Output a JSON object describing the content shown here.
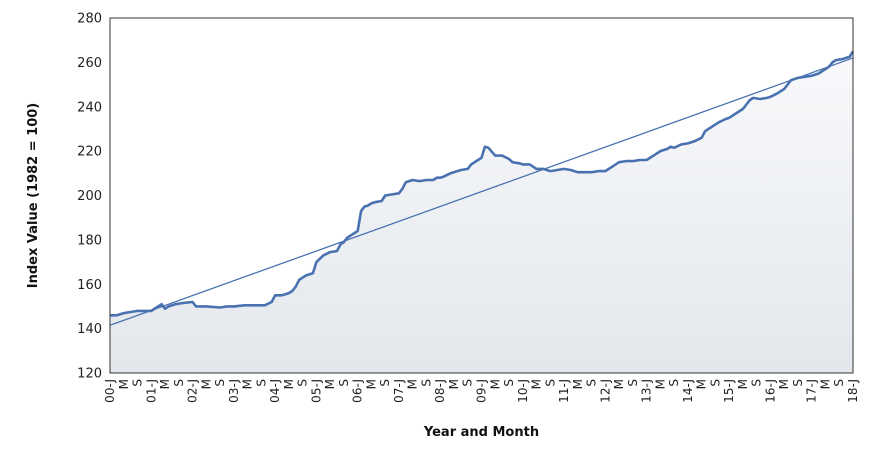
{
  "chart_data": {
    "type": "line",
    "xlabel": "Year and Month",
    "ylabel": "Index Value (1982 = 100)",
    "ylim": [
      120,
      280
    ],
    "yticks": [
      120,
      140,
      160,
      180,
      200,
      220,
      240,
      260,
      280
    ],
    "grid": false,
    "legend": "none",
    "x_tick_labels": [
      "00-J",
      "M",
      "S",
      "01-J",
      "M",
      "S",
      "02-J",
      "M",
      "S",
      "03-J",
      "M",
      "S",
      "04-J",
      "M",
      "S",
      "05-J",
      "M",
      "S",
      "06-J",
      "M",
      "S",
      "07-J",
      "M",
      "S",
      "08-J",
      "M",
      "S",
      "09-J",
      "M",
      "S",
      "10-J",
      "M",
      "S",
      "11-J",
      "M",
      "S",
      "12-J",
      "M",
      "S",
      "13-J",
      "M",
      "S",
      "14-J",
      "M",
      "S",
      "15-J",
      "M",
      "S",
      "16-J",
      "M",
      "S",
      "17-J",
      "M",
      "S",
      "18-J"
    ],
    "x_start": "2000-01",
    "x_end": "2018-01",
    "series": [
      {
        "role": "index",
        "color": "#4a72b0",
        "points": [
          [
            "2000-01",
            146
          ],
          [
            "2000-03",
            146
          ],
          [
            "2000-05",
            147
          ],
          [
            "2000-07",
            147.5
          ],
          [
            "2000-09",
            148
          ],
          [
            "2000-11",
            148
          ],
          [
            "2001-01",
            148
          ],
          [
            "2001-03",
            150
          ],
          [
            "2001-04",
            151
          ],
          [
            "2001-05",
            149
          ],
          [
            "2001-06",
            150
          ],
          [
            "2001-08",
            151
          ],
          [
            "2001-10",
            151.5
          ],
          [
            "2002-01",
            152
          ],
          [
            "2002-02",
            150
          ],
          [
            "2002-05",
            150
          ],
          [
            "2002-09",
            149.5
          ],
          [
            "2002-11",
            150
          ],
          [
            "2003-01",
            150
          ],
          [
            "2003-04",
            150.5
          ],
          [
            "2003-07",
            150.5
          ],
          [
            "2003-10",
            150.5
          ],
          [
            "2003-12",
            152
          ],
          [
            "2004-01",
            155
          ],
          [
            "2004-03",
            155
          ],
          [
            "2004-05",
            156
          ],
          [
            "2004-06",
            157
          ],
          [
            "2004-07",
            159
          ],
          [
            "2004-08",
            162
          ],
          [
            "2004-10",
            164
          ],
          [
            "2004-12",
            165
          ],
          [
            "2005-01",
            170
          ],
          [
            "2005-03",
            173
          ],
          [
            "2005-05",
            174.5
          ],
          [
            "2005-07",
            175
          ],
          [
            "2005-08",
            178
          ],
          [
            "2005-09",
            179
          ],
          [
            "2005-10",
            181
          ],
          [
            "2005-12",
            183
          ],
          [
            "2006-01",
            184
          ],
          [
            "2006-02",
            193
          ],
          [
            "2006-03",
            195
          ],
          [
            "2006-04",
            195.5
          ],
          [
            "2006-05",
            196.5
          ],
          [
            "2006-06",
            197
          ],
          [
            "2006-08",
            197.5
          ],
          [
            "2006-09",
            200
          ],
          [
            "2006-11",
            200.5
          ],
          [
            "2007-01",
            201
          ],
          [
            "2007-02",
            203
          ],
          [
            "2007-03",
            206
          ],
          [
            "2007-05",
            207
          ],
          [
            "2007-07",
            206.5
          ],
          [
            "2007-09",
            207
          ],
          [
            "2007-11",
            207
          ],
          [
            "2007-12",
            208
          ],
          [
            "2008-01",
            208
          ],
          [
            "2008-02",
            208.5
          ],
          [
            "2008-04",
            210
          ],
          [
            "2008-06",
            211
          ],
          [
            "2008-07",
            211.5
          ],
          [
            "2008-09",
            212
          ],
          [
            "2008-10",
            214
          ],
          [
            "2008-12",
            216
          ],
          [
            "2009-01",
            217
          ],
          [
            "2009-02",
            222
          ],
          [
            "2009-03",
            221.5
          ],
          [
            "2009-05",
            218
          ],
          [
            "2009-07",
            218
          ],
          [
            "2009-09",
            216.5
          ],
          [
            "2009-10",
            215
          ],
          [
            "2009-12",
            214.5
          ],
          [
            "2010-01",
            214
          ],
          [
            "2010-03",
            214
          ],
          [
            "2010-05",
            212
          ],
          [
            "2010-07",
            212
          ],
          [
            "2010-09",
            211
          ],
          [
            "2010-11",
            211.5
          ],
          [
            "2011-01",
            212
          ],
          [
            "2011-03",
            211.5
          ],
          [
            "2011-05",
            210.5
          ],
          [
            "2011-07",
            210.5
          ],
          [
            "2011-09",
            210.5
          ],
          [
            "2011-11",
            211
          ],
          [
            "2012-01",
            211
          ],
          [
            "2012-03",
            213
          ],
          [
            "2012-05",
            215
          ],
          [
            "2012-07",
            215.5
          ],
          [
            "2012-09",
            215.5
          ],
          [
            "2012-11",
            216
          ],
          [
            "2013-01",
            216
          ],
          [
            "2013-03",
            218
          ],
          [
            "2013-05",
            220
          ],
          [
            "2013-07",
            221
          ],
          [
            "2013-08",
            222
          ],
          [
            "2013-09",
            221.5
          ],
          [
            "2013-11",
            223
          ],
          [
            "2014-01",
            223.5
          ],
          [
            "2014-03",
            224.5
          ],
          [
            "2014-05",
            226
          ],
          [
            "2014-06",
            229
          ],
          [
            "2014-08",
            231
          ],
          [
            "2014-10",
            233
          ],
          [
            "2014-12",
            234.5
          ],
          [
            "2015-01",
            235
          ],
          [
            "2015-03",
            237
          ],
          [
            "2015-05",
            239
          ],
          [
            "2015-06",
            241
          ],
          [
            "2015-07",
            243
          ],
          [
            "2015-08",
            244
          ],
          [
            "2015-10",
            243.5
          ],
          [
            "2015-12",
            244
          ],
          [
            "2016-01",
            244.5
          ],
          [
            "2016-03",
            246
          ],
          [
            "2016-05",
            248
          ],
          [
            "2016-06",
            250
          ],
          [
            "2016-07",
            252
          ],
          [
            "2016-09",
            253
          ],
          [
            "2016-11",
            253.5
          ],
          [
            "2017-01",
            254
          ],
          [
            "2017-03",
            255
          ],
          [
            "2017-05",
            257
          ],
          [
            "2017-06",
            258
          ],
          [
            "2017-07",
            260
          ],
          [
            "2017-08",
            261
          ],
          [
            "2017-10",
            261.5
          ],
          [
            "2017-12",
            262.5
          ],
          [
            "2018-01",
            265
          ]
        ]
      },
      {
        "role": "linear-trend",
        "color": "#4a72b0",
        "points": [
          [
            "2000-01",
            141.5
          ],
          [
            "2018-01",
            262
          ]
        ]
      }
    ]
  }
}
